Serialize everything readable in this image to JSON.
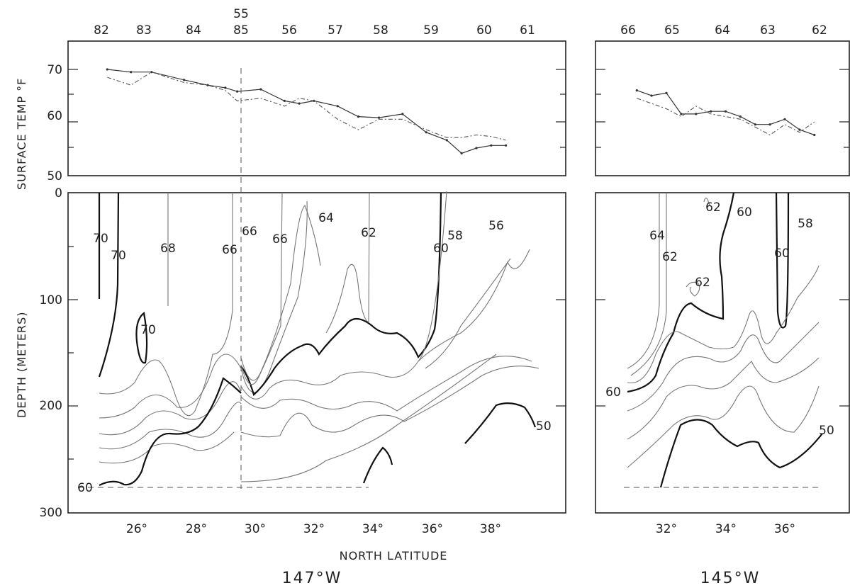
{
  "chart_data": {
    "type": "line",
    "title": "",
    "xlabel": "NORTH LATITUDE",
    "panels": [
      {
        "section": "147°W",
        "stations": [
          "82",
          "83",
          "84",
          "55",
          "85",
          "56",
          "57",
          "58",
          "59",
          "60",
          "61"
        ],
        "surface_temp": {
          "ylabel": "SURFACE TEMP °F",
          "ylim": [
            50,
            75
          ],
          "yticks": [
            "50",
            "60",
            "70"
          ],
          "lat": [
            25.0,
            25.8,
            26.5,
            27.6,
            28.4,
            29.0,
            29.4,
            30.2,
            31.0,
            31.5,
            32.0,
            32.8,
            33.5,
            34.2,
            35.0,
            35.8,
            36.5,
            37.0,
            37.5,
            38.0,
            38.5
          ],
          "series": [
            {
              "values": [
                70.0,
                69.5,
                69.5,
                68.0,
                67.0,
                66.5,
                65.8,
                66.2,
                64.0,
                63.5,
                64.0,
                63.0,
                61.0,
                60.8,
                61.5,
                58.0,
                56.5,
                54.0,
                55.0,
                55.5,
                55.5
              ]
            },
            {
              "values": [
                68.5,
                67.0,
                69.5,
                67.5,
                67.0,
                66.0,
                64.0,
                64.5,
                63.0,
                64.5,
                64.0,
                60.5,
                58.5,
                60.5,
                60.5,
                58.5,
                57.0,
                57.0,
                57.5,
                57.2,
                56.5
              ]
            }
          ]
        },
        "depth_section": {
          "ylabel": "DEPTH (METERS)",
          "ylim": [
            300,
            0
          ],
          "xticks": [
            "26°",
            "28°",
            "30°",
            "32°",
            "34°",
            "36°",
            "38°"
          ],
          "yticks": [
            "0",
            "100",
            "200",
            "300"
          ],
          "isotherm_labels": [
            "70",
            "70",
            "70",
            "68",
            "66",
            "66",
            "66",
            "64",
            "62",
            "60",
            "58",
            "56",
            "60",
            "50"
          ]
        }
      },
      {
        "section": "145°W",
        "stations": [
          "66",
          "65",
          "64",
          "63",
          "62"
        ],
        "surface_temp": {
          "ylim": [
            50,
            75
          ],
          "lat": [
            31.0,
            31.5,
            32.0,
            32.5,
            33.0,
            33.5,
            34.0,
            34.5,
            35.0,
            35.5,
            36.0,
            36.5,
            37.0
          ],
          "series": [
            {
              "values": [
                66.0,
                65.0,
                65.5,
                61.5,
                61.5,
                62.0,
                62.0,
                61.0,
                59.5,
                59.5,
                60.5,
                58.5,
                57.5
              ]
            },
            {
              "values": [
                64.5,
                63.5,
                62.5,
                61.0,
                63.0,
                61.5,
                61.0,
                60.5,
                59.0,
                57.5,
                59.5,
                58.0,
                60.0
              ]
            }
          ]
        },
        "depth_section": {
          "ylim": [
            300,
            0
          ],
          "xticks": [
            "32°",
            "34°",
            "36°"
          ],
          "isotherm_labels": [
            "64",
            "62",
            "62",
            "62",
            "60",
            "60",
            "58",
            "60",
            "50"
          ]
        }
      }
    ]
  }
}
